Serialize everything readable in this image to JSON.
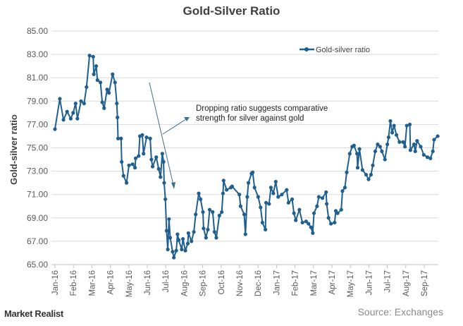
{
  "chart_data": {
    "type": "line",
    "title": "Gold-Silver Ratio",
    "xlabel": "",
    "ylabel": "Gold-silver ratio",
    "ylim": [
      65,
      85
    ],
    "yticks": [
      "65.00",
      "67.00",
      "69.00",
      "71.00",
      "73.00",
      "75.00",
      "77.00",
      "79.00",
      "81.00",
      "83.00",
      "85.00"
    ],
    "xticks": [
      "Jan-16",
      "Feb-16",
      "Mar-16",
      "Apr-16",
      "May-16",
      "Jun-16",
      "Jul-16",
      "Aug-16",
      "Sep-16",
      "Oct-16",
      "Nov-16",
      "Dec-16",
      "Jan-17",
      "Feb-17",
      "Mar-17",
      "Apr-17",
      "May-17",
      "Jun-17",
      "Jul-17",
      "Aug-17",
      "Sep-17"
    ],
    "grid": true,
    "legend": "top-right",
    "color": "#1f5f8f",
    "annotation": [
      "Dropping ratio suggests comparative",
      "strength for silver against gold"
    ],
    "series": [
      {
        "name": "Gold-silver ratio",
        "points": [
          [
            "2016-01-01",
            76.6
          ],
          [
            "2016-01-09",
            79.2
          ],
          [
            "2016-01-15",
            77.4
          ],
          [
            "2016-01-21",
            78.1
          ],
          [
            "2016-01-27",
            77.5
          ],
          [
            "2016-01-31",
            78.0
          ],
          [
            "2016-02-04",
            78.8
          ],
          [
            "2016-02-07",
            77.5
          ],
          [
            "2016-02-13",
            79.0
          ],
          [
            "2016-02-18",
            78.8
          ],
          [
            "2016-02-22",
            80.2
          ],
          [
            "2016-02-27",
            82.9
          ],
          [
            "2016-03-04",
            82.8
          ],
          [
            "2016-03-05",
            81.3
          ],
          [
            "2016-03-09",
            82.0
          ],
          [
            "2016-03-11",
            80.8
          ],
          [
            "2016-03-16",
            80.6
          ],
          [
            "2016-03-19",
            78.9
          ],
          [
            "2016-03-22",
            78.4
          ],
          [
            "2016-03-27",
            80.0
          ],
          [
            "2016-03-30",
            79.7
          ],
          [
            "2016-04-05",
            81.3
          ],
          [
            "2016-04-09",
            80.6
          ],
          [
            "2016-04-12",
            78.8
          ],
          [
            "2016-04-13",
            77.6
          ],
          [
            "2016-04-14",
            75.8
          ],
          [
            "2016-04-19",
            75.8
          ],
          [
            "2016-04-20",
            73.8
          ],
          [
            "2016-04-23",
            72.6
          ],
          [
            "2016-04-28",
            72.0
          ],
          [
            "2016-05-02",
            73.5
          ],
          [
            "2016-05-08",
            73.6
          ],
          [
            "2016-05-12",
            73.3
          ],
          [
            "2016-05-13",
            74.1
          ],
          [
            "2016-05-18",
            74.3
          ],
          [
            "2016-05-20",
            76.0
          ],
          [
            "2016-05-24",
            76.1
          ],
          [
            "2016-05-26",
            74.5
          ],
          [
            "2016-05-31",
            75.9
          ],
          [
            "2016-06-06",
            75.8
          ],
          [
            "2016-06-08",
            74.0
          ],
          [
            "2016-06-10",
            73.4
          ],
          [
            "2016-06-16",
            74.2
          ],
          [
            "2016-06-20",
            73.2
          ],
          [
            "2016-06-23",
            72.5
          ],
          [
            "2016-06-26",
            74.5
          ],
          [
            "2016-06-28",
            73.8
          ],
          [
            "2016-06-29",
            72.0
          ],
          [
            "2016-07-01",
            70.6
          ],
          [
            "2016-07-03",
            67.9
          ],
          [
            "2016-07-05",
            66.3
          ],
          [
            "2016-07-07",
            68.9
          ],
          [
            "2016-07-09",
            67.3
          ],
          [
            "2016-07-13",
            66.1
          ],
          [
            "2016-07-15",
            65.6
          ],
          [
            "2016-07-19",
            66.2
          ],
          [
            "2016-07-21",
            67.6
          ],
          [
            "2016-07-23",
            67.1
          ],
          [
            "2016-07-28",
            66.3
          ],
          [
            "2016-07-30",
            67.2
          ],
          [
            "2016-08-03",
            66.2
          ],
          [
            "2016-08-07",
            66.8
          ],
          [
            "2016-08-08",
            67.7
          ],
          [
            "2016-08-13",
            67.0
          ],
          [
            "2016-08-17",
            67.8
          ],
          [
            "2016-08-20",
            69.3
          ],
          [
            "2016-08-25",
            71.1
          ],
          [
            "2016-08-28",
            70.6
          ],
          [
            "2016-09-01",
            69.5
          ],
          [
            "2016-09-02",
            68.1
          ],
          [
            "2016-09-06",
            67.3
          ],
          [
            "2016-09-09",
            68.0
          ],
          [
            "2016-09-12",
            69.7
          ],
          [
            "2016-09-17",
            69.5
          ],
          [
            "2016-09-20",
            67.8
          ],
          [
            "2016-09-23",
            67.3
          ],
          [
            "2016-09-28",
            69.2
          ],
          [
            "2016-10-02",
            69.5
          ],
          [
            "2016-10-04",
            71.1
          ],
          [
            "2016-10-05",
            72.2
          ],
          [
            "2016-10-10",
            71.4
          ],
          [
            "2016-10-17",
            71.6
          ],
          [
            "2016-10-19",
            71.7
          ],
          [
            "2016-10-31",
            71.0
          ],
          [
            "2016-11-02",
            70.0
          ],
          [
            "2016-11-08",
            69.3
          ],
          [
            "2016-11-10",
            67.6
          ],
          [
            "2016-11-13",
            70.8
          ],
          [
            "2016-11-15",
            72.0
          ],
          [
            "2016-11-20",
            72.8
          ],
          [
            "2016-11-22",
            72.9
          ],
          [
            "2016-11-25",
            71.6
          ],
          [
            "2016-12-01",
            70.8
          ],
          [
            "2016-12-05",
            69.9
          ],
          [
            "2016-12-08",
            68.6
          ],
          [
            "2016-12-13",
            68.0
          ],
          [
            "2016-12-14",
            70.3
          ],
          [
            "2016-12-19",
            70.2
          ],
          [
            "2016-12-22",
            71.6
          ],
          [
            "2016-12-26",
            71.1
          ],
          [
            "2016-12-30",
            72.1
          ],
          [
            "2017-01-03",
            70.8
          ],
          [
            "2017-01-09",
            71.0
          ],
          [
            "2017-01-17",
            71.4
          ],
          [
            "2017-01-20",
            70.3
          ],
          [
            "2017-01-26",
            70.6
          ],
          [
            "2017-01-29",
            69.4
          ],
          [
            "2017-02-01",
            68.8
          ],
          [
            "2017-02-07",
            69.7
          ],
          [
            "2017-02-12",
            68.6
          ],
          [
            "2017-02-18",
            68.7
          ],
          [
            "2017-02-22",
            68.5
          ],
          [
            "2017-02-26",
            68.2
          ],
          [
            "2017-03-01",
            67.7
          ],
          [
            "2017-03-03",
            69.4
          ],
          [
            "2017-03-08",
            70.0
          ],
          [
            "2017-03-11",
            70.8
          ],
          [
            "2017-03-17",
            70.7
          ],
          [
            "2017-03-23",
            71.2
          ],
          [
            "2017-03-24",
            70.2
          ],
          [
            "2017-03-27",
            69.0
          ],
          [
            "2017-03-31",
            68.5
          ],
          [
            "2017-04-06",
            68.6
          ],
          [
            "2017-04-08",
            69.6
          ],
          [
            "2017-04-11",
            69.4
          ],
          [
            "2017-04-17",
            69.7
          ],
          [
            "2017-04-19",
            71.3
          ],
          [
            "2017-04-23",
            71.6
          ],
          [
            "2017-04-26",
            72.9
          ],
          [
            "2017-05-01",
            74.5
          ],
          [
            "2017-05-05",
            75.1
          ],
          [
            "2017-05-08",
            75.2
          ],
          [
            "2017-05-13",
            74.5
          ],
          [
            "2017-05-14",
            73.3
          ],
          [
            "2017-05-17",
            74.9
          ],
          [
            "2017-05-22",
            73.1
          ],
          [
            "2017-05-28",
            72.7
          ],
          [
            "2017-06-01",
            72.3
          ],
          [
            "2017-06-05",
            72.7
          ],
          [
            "2017-06-08",
            73.5
          ],
          [
            "2017-06-12",
            74.7
          ],
          [
            "2017-06-16",
            75.3
          ],
          [
            "2017-06-20",
            75.1
          ],
          [
            "2017-06-23",
            74.7
          ],
          [
            "2017-06-28",
            74.0
          ],
          [
            "2017-07-02",
            75.3
          ],
          [
            "2017-07-04",
            75.9
          ],
          [
            "2017-07-07",
            77.3
          ],
          [
            "2017-07-10",
            76.3
          ],
          [
            "2017-07-13",
            76.9
          ],
          [
            "2017-07-17",
            76.1
          ],
          [
            "2017-07-22",
            75.5
          ],
          [
            "2017-07-28",
            75.5
          ],
          [
            "2017-07-31",
            75.1
          ],
          [
            "2017-08-03",
            76.9
          ],
          [
            "2017-08-08",
            77.0
          ],
          [
            "2017-08-09",
            74.8
          ],
          [
            "2017-08-15",
            75.3
          ],
          [
            "2017-08-17",
            74.7
          ],
          [
            "2017-08-20",
            75.6
          ],
          [
            "2017-08-26",
            75.1
          ],
          [
            "2017-08-31",
            74.4
          ],
          [
            "2017-09-06",
            74.2
          ],
          [
            "2017-09-11",
            74.1
          ],
          [
            "2017-09-15",
            74.7
          ],
          [
            "2017-09-17",
            75.7
          ],
          [
            "2017-09-23",
            76.0
          ]
        ]
      }
    ]
  },
  "footer": {
    "logo": "Market Realist",
    "source": "Source: Exchanges"
  }
}
